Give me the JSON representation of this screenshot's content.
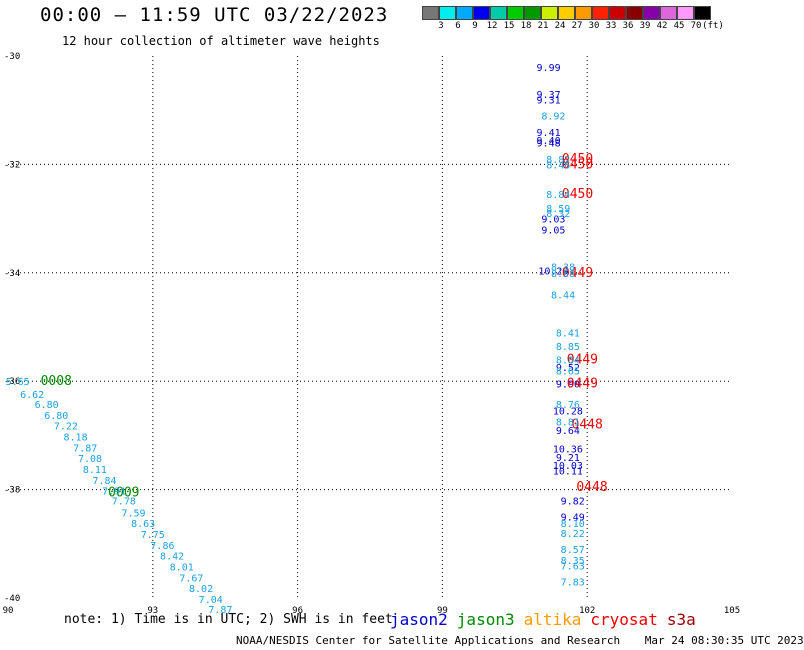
{
  "header": {
    "title": "00:00 – 11:59 UTC 03/22/2023",
    "subtitle": "12 hour collection of altimeter wave heights"
  },
  "colorbar": {
    "colors": [
      "#777777",
      "#00eeee",
      "#00aaff",
      "#0000ee",
      "#00ccaa",
      "#00cc00",
      "#009900",
      "#ccee00",
      "#ffcc00",
      "#ff9900",
      "#ff2200",
      "#cc0000",
      "#880000",
      "#8800aa",
      "#dd66dd",
      "#ff99ff",
      "#000000"
    ],
    "labels": [
      "3",
      "6",
      "9",
      "12",
      "15",
      "18",
      "21",
      "24",
      "27",
      "30",
      "33",
      "36",
      "39",
      "42",
      "45",
      "70",
      "(ft)"
    ]
  },
  "chart_data": {
    "type": "scatter",
    "title": "00:00 – 11:59 UTC 03/22/2023",
    "subtitle": "12 hour collection of altimeter wave heights",
    "xlim": [
      90,
      105
    ],
    "ylim": [
      -40,
      -30
    ],
    "x_ticks": [
      "90",
      "93",
      "96",
      "99",
      "102",
      "105"
    ],
    "y_ticks": [
      "-30",
      "-32",
      "-34",
      "-36",
      "-38",
      "-40"
    ],
    "grid": true,
    "legend": "bottom-right",
    "series": [
      {
        "name": "jason2",
        "color": "#0000cc",
        "points": [
          {
            "x": 101.2,
            "y": -30.2,
            "v": "9.99"
          },
          {
            "x": 101.2,
            "y": -30.7,
            "v": "9.37"
          },
          {
            "x": 101.2,
            "y": -30.8,
            "v": "9.31"
          },
          {
            "x": 101.2,
            "y": -31.4,
            "v": "9.41"
          },
          {
            "x": 101.2,
            "y": -31.55,
            "v": "9.40"
          },
          {
            "x": 101.2,
            "y": -31.6,
            "v": "9.48"
          },
          {
            "x": 101.3,
            "y": -33.0,
            "v": "9.03"
          },
          {
            "x": 101.3,
            "y": -33.2,
            "v": "9.05"
          },
          {
            "x": 101.3,
            "y": -33.96,
            "v": "10.29"
          },
          {
            "x": 101.6,
            "y": -35.74,
            "v": "9.52"
          },
          {
            "x": 101.6,
            "y": -36.04,
            "v": "9.90"
          },
          {
            "x": 101.6,
            "y": -36.54,
            "v": "10.28"
          },
          {
            "x": 101.6,
            "y": -36.9,
            "v": "9.64"
          },
          {
            "x": 101.6,
            "y": -37.24,
            "v": "10.36"
          },
          {
            "x": 101.6,
            "y": -37.4,
            "v": "9.21"
          },
          {
            "x": 101.6,
            "y": -37.55,
            "v": "10.03"
          },
          {
            "x": 101.6,
            "y": -37.65,
            "v": "10.11"
          },
          {
            "x": 101.7,
            "y": -38.2,
            "v": "9.82"
          },
          {
            "x": 101.7,
            "y": -38.5,
            "v": "9.49"
          }
        ]
      },
      {
        "name": "jason3",
        "color": "#008800",
        "points": [
          {
            "x": 91.0,
            "y": -36.0,
            "v": "0008"
          },
          {
            "x": 92.4,
            "y": -38.05,
            "v": "0009"
          }
        ]
      },
      {
        "name": "altika",
        "color": "#ff9900",
        "points": []
      },
      {
        "name": "cryosat",
        "color": "#ee0000",
        "points": [
          {
            "x": 101.8,
            "y": -31.9,
            "v": "0450"
          },
          {
            "x": 101.8,
            "y": -32.0,
            "v": "0450"
          },
          {
            "x": 101.8,
            "y": -32.55,
            "v": "0450"
          },
          {
            "x": 101.8,
            "y": -34.0,
            "v": "0449"
          },
          {
            "x": 101.9,
            "y": -35.6,
            "v": "0449"
          },
          {
            "x": 101.9,
            "y": -36.04,
            "v": "0449"
          },
          {
            "x": 102.0,
            "y": -36.8,
            "v": "0448"
          },
          {
            "x": 102.1,
            "y": -37.95,
            "v": "0448"
          }
        ]
      },
      {
        "name": "s3a",
        "color": "#990000",
        "points": []
      },
      {
        "name": "",
        "color": "#1a9fe0",
        "points": [
          {
            "x": 90.2,
            "y": -36.0,
            "v": "5.65"
          },
          {
            "x": 90.5,
            "y": -36.24,
            "v": "6.62"
          },
          {
            "x": 90.8,
            "y": -36.42,
            "v": "6.80"
          },
          {
            "x": 91.0,
            "y": -36.62,
            "v": "6.80"
          },
          {
            "x": 91.2,
            "y": -36.82,
            "v": "7.22"
          },
          {
            "x": 91.4,
            "y": -37.02,
            "v": "8.18"
          },
          {
            "x": 91.6,
            "y": -37.22,
            "v": "7.87"
          },
          {
            "x": 91.7,
            "y": -37.42,
            "v": "7.08"
          },
          {
            "x": 91.8,
            "y": -37.62,
            "v": "8.11"
          },
          {
            "x": 92.0,
            "y": -37.82,
            "v": "7.84"
          },
          {
            "x": 92.2,
            "y": -38.02,
            "v": "7.91"
          },
          {
            "x": 92.4,
            "y": -38.2,
            "v": "7.78"
          },
          {
            "x": 92.6,
            "y": -38.42,
            "v": "7.59"
          },
          {
            "x": 92.8,
            "y": -38.62,
            "v": "8.63"
          },
          {
            "x": 93.0,
            "y": -38.82,
            "v": "7.75"
          },
          {
            "x": 93.2,
            "y": -39.02,
            "v": "7.86"
          },
          {
            "x": 93.4,
            "y": -39.22,
            "v": "8.42"
          },
          {
            "x": 93.6,
            "y": -39.42,
            "v": "8.01"
          },
          {
            "x": 93.8,
            "y": -39.62,
            "v": "7.67"
          },
          {
            "x": 94.0,
            "y": -39.82,
            "v": "8.02"
          },
          {
            "x": 94.2,
            "y": -40.02,
            "v": "7.04"
          },
          {
            "x": 94.4,
            "y": -40.2,
            "v": "7.87"
          },
          {
            "x": 101.3,
            "y": -31.1,
            "v": "8.92"
          },
          {
            "x": 101.4,
            "y": -31.9,
            "v": "8.82"
          },
          {
            "x": 101.4,
            "y": -32.0,
            "v": "8.46"
          },
          {
            "x": 101.4,
            "y": -32.55,
            "v": "8.84"
          },
          {
            "x": 101.4,
            "y": -32.8,
            "v": "8.59"
          },
          {
            "x": 101.4,
            "y": -32.9,
            "v": "8.32"
          },
          {
            "x": 101.5,
            "y": -33.88,
            "v": "8.38"
          },
          {
            "x": 101.5,
            "y": -34.0,
            "v": "8.58"
          },
          {
            "x": 101.5,
            "y": -34.4,
            "v": "8.44"
          },
          {
            "x": 101.6,
            "y": -35.1,
            "v": "8.41"
          },
          {
            "x": 101.6,
            "y": -35.35,
            "v": "8.85"
          },
          {
            "x": 101.6,
            "y": -35.6,
            "v": "8.84"
          },
          {
            "x": 101.6,
            "y": -35.8,
            "v": "8.65"
          },
          {
            "x": 101.6,
            "y": -36.42,
            "v": "8.76"
          },
          {
            "x": 101.6,
            "y": -36.74,
            "v": "8.81"
          },
          {
            "x": 101.7,
            "y": -38.62,
            "v": "8.10"
          },
          {
            "x": 101.7,
            "y": -38.8,
            "v": "8.22"
          },
          {
            "x": 101.7,
            "y": -39.1,
            "v": "8.57"
          },
          {
            "x": 101.7,
            "y": -39.3,
            "v": "8.35"
          },
          {
            "x": 101.7,
            "y": -39.4,
            "v": "7.63"
          },
          {
            "x": 101.7,
            "y": -39.7,
            "v": "7.83"
          }
        ]
      }
    ]
  },
  "note": "note:  1) Time is in UTC; 2) SWH is in feet",
  "footer": {
    "credit": "NOAA/NESDIS Center for Satellite Applications and Research",
    "timestamp": "Mar 24 08:30:35 UTC 2023"
  }
}
